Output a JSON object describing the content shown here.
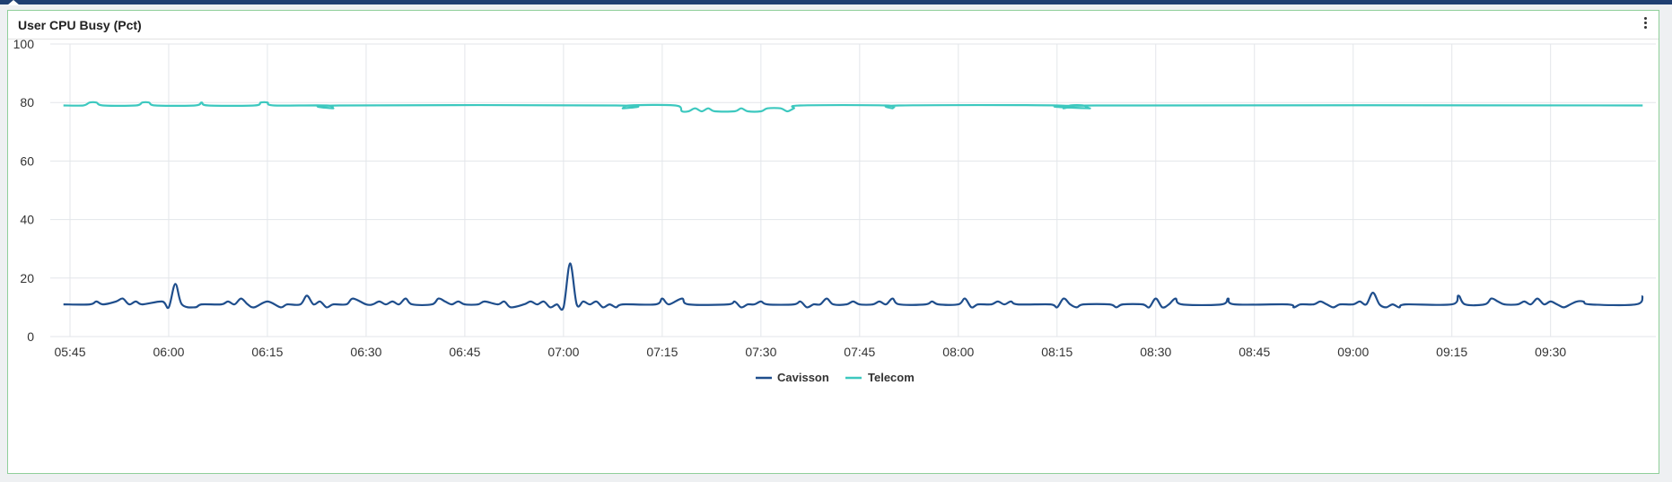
{
  "panel": {
    "title": "User CPU Busy (Pct)"
  },
  "colors": {
    "cavisson": "#1f4e8c",
    "telecom": "#3cc8bf",
    "grid": "#e3e6ea",
    "border": "#8fcf9a"
  },
  "icons": {
    "menu": "kebab-vertical-icon"
  },
  "chart_data": {
    "type": "line",
    "title": "User CPU Busy (Pct)",
    "xlabel": "",
    "ylabel": "",
    "ylim": [
      0,
      100
    ],
    "xlim": [
      "05:42",
      "09:46"
    ],
    "y_ticks": [
      0,
      20,
      40,
      60,
      80,
      100
    ],
    "x_ticks": [
      "05:45",
      "06:00",
      "06:15",
      "06:30",
      "06:45",
      "07:00",
      "07:15",
      "07:30",
      "07:45",
      "08:00",
      "08:15",
      "08:30",
      "08:45",
      "09:00",
      "09:15",
      "09:30"
    ],
    "grid": true,
    "legend": "bottom-center",
    "series": [
      {
        "name": "Cavisson",
        "points": [
          [
            "05:44",
            11
          ],
          [
            "05:48",
            11
          ],
          [
            "05:49",
            12
          ],
          [
            "05:50",
            11
          ],
          [
            "05:52",
            12
          ],
          [
            "05:53",
            13
          ],
          [
            "05:54",
            11
          ],
          [
            "05:55",
            12
          ],
          [
            "05:56",
            11
          ],
          [
            "05:59",
            12
          ],
          [
            "06:00",
            10
          ],
          [
            "06:01",
            18
          ],
          [
            "06:02",
            11
          ],
          [
            "06:04",
            10
          ],
          [
            "06:05",
            11
          ],
          [
            "06:08",
            11
          ],
          [
            "06:09",
            12
          ],
          [
            "06:10",
            11
          ],
          [
            "06:11",
            13
          ],
          [
            "06:12",
            11
          ],
          [
            "06:13",
            10
          ],
          [
            "06:15",
            12
          ],
          [
            "06:17",
            10
          ],
          [
            "06:18",
            11
          ],
          [
            "06:20",
            11
          ],
          [
            "06:21",
            14
          ],
          [
            "06:22",
            11
          ],
          [
            "06:23",
            12
          ],
          [
            "06:24",
            10
          ],
          [
            "06:25",
            11
          ],
          [
            "06:27",
            11
          ],
          [
            "06:28",
            13
          ],
          [
            "06:30",
            11
          ],
          [
            "06:31",
            11
          ],
          [
            "06:32",
            12
          ],
          [
            "06:33",
            11
          ],
          [
            "06:34",
            12
          ],
          [
            "06:35",
            11
          ],
          [
            "06:36",
            13
          ],
          [
            "06:37",
            11
          ],
          [
            "06:40",
            11
          ],
          [
            "06:41",
            13
          ],
          [
            "06:42",
            12
          ],
          [
            "06:43",
            11
          ],
          [
            "06:44",
            12
          ],
          [
            "06:45",
            11
          ],
          [
            "06:47",
            11
          ],
          [
            "06:48",
            12
          ],
          [
            "06:50",
            11
          ],
          [
            "06:51",
            12
          ],
          [
            "06:52",
            10
          ],
          [
            "06:54",
            11
          ],
          [
            "06:55",
            12
          ],
          [
            "06:56",
            11
          ],
          [
            "06:57",
            12
          ],
          [
            "06:58",
            10
          ],
          [
            "06:59",
            11
          ],
          [
            "07:00",
            10
          ],
          [
            "07:01",
            25
          ],
          [
            "07:02",
            11
          ],
          [
            "07:03",
            12
          ],
          [
            "07:04",
            11
          ],
          [
            "07:05",
            12
          ],
          [
            "07:06",
            10
          ],
          [
            "07:07",
            11
          ],
          [
            "07:08",
            10
          ],
          [
            "07:09",
            11
          ],
          [
            "07:14",
            11
          ],
          [
            "07:15",
            13
          ],
          [
            "07:16",
            11
          ],
          [
            "07:18",
            13
          ],
          [
            "07:19",
            11
          ],
          [
            "07:25",
            11
          ],
          [
            "07:26",
            12
          ],
          [
            "07:27",
            10
          ],
          [
            "07:28",
            11
          ],
          [
            "07:29",
            11
          ],
          [
            "07:30",
            12
          ],
          [
            "07:31",
            11
          ],
          [
            "07:35",
            11
          ],
          [
            "07:36",
            12
          ],
          [
            "07:37",
            10
          ],
          [
            "07:38",
            11
          ],
          [
            "07:39",
            11
          ],
          [
            "07:40",
            13
          ],
          [
            "07:41",
            11
          ],
          [
            "07:43",
            11
          ],
          [
            "07:44",
            12
          ],
          [
            "07:45",
            11
          ],
          [
            "07:47",
            11
          ],
          [
            "07:48",
            12
          ],
          [
            "07:49",
            11
          ],
          [
            "07:50",
            13
          ],
          [
            "07:51",
            11
          ],
          [
            "07:55",
            11
          ],
          [
            "07:56",
            12
          ],
          [
            "07:57",
            11
          ],
          [
            "08:00",
            11
          ],
          [
            "08:01",
            13
          ],
          [
            "08:02",
            10
          ],
          [
            "08:03",
            11
          ],
          [
            "08:05",
            11
          ],
          [
            "08:06",
            12
          ],
          [
            "08:07",
            11
          ],
          [
            "08:08",
            12
          ],
          [
            "08:09",
            11
          ],
          [
            "08:14",
            11
          ],
          [
            "08:15",
            10
          ],
          [
            "08:16",
            13
          ],
          [
            "08:17",
            11
          ],
          [
            "08:18",
            10
          ],
          [
            "08:19",
            11
          ],
          [
            "08:23",
            11
          ],
          [
            "08:24",
            10
          ],
          [
            "08:25",
            11
          ],
          [
            "08:28",
            11
          ],
          [
            "08:29",
            10
          ],
          [
            "08:30",
            13
          ],
          [
            "08:31",
            10
          ],
          [
            "08:32",
            11
          ],
          [
            "08:33",
            13
          ],
          [
            "08:34",
            11
          ],
          [
            "08:40",
            11
          ],
          [
            "08:41",
            13
          ],
          [
            "08:42",
            11
          ],
          [
            "08:50",
            11
          ],
          [
            "08:51",
            10
          ],
          [
            "08:52",
            11
          ],
          [
            "08:54",
            11
          ],
          [
            "08:55",
            12
          ],
          [
            "08:56",
            11
          ],
          [
            "08:57",
            10
          ],
          [
            "08:58",
            11
          ],
          [
            "09:00",
            11
          ],
          [
            "09:01",
            12
          ],
          [
            "09:02",
            11
          ],
          [
            "09:03",
            15
          ],
          [
            "09:04",
            11
          ],
          [
            "09:05",
            10
          ],
          [
            "09:06",
            11
          ],
          [
            "09:07",
            10
          ],
          [
            "09:08",
            11
          ],
          [
            "09:15",
            11
          ],
          [
            "09:16",
            14
          ],
          [
            "09:17",
            11
          ],
          [
            "09:20",
            11
          ],
          [
            "09:21",
            13
          ],
          [
            "09:22",
            12
          ],
          [
            "09:23",
            11
          ],
          [
            "09:25",
            11
          ],
          [
            "09:26",
            12
          ],
          [
            "09:27",
            11
          ],
          [
            "09:28",
            13
          ],
          [
            "09:29",
            11
          ],
          [
            "09:30",
            12
          ],
          [
            "09:31",
            11
          ],
          [
            "09:32",
            10
          ],
          [
            "09:33",
            11
          ],
          [
            "09:34",
            12
          ],
          [
            "09:35",
            12
          ],
          [
            "09:36",
            11
          ],
          [
            "09:43",
            11
          ],
          [
            "09:44",
            14
          ]
        ]
      },
      {
        "name": "Telecom",
        "points": [
          [
            "05:44",
            79
          ],
          [
            "05:47",
            79
          ],
          [
            "05:48",
            80
          ],
          [
            "05:49",
            80
          ],
          [
            "05:50",
            79
          ],
          [
            "05:55",
            79
          ],
          [
            "05:56",
            80
          ],
          [
            "05:57",
            80
          ],
          [
            "05:58",
            79
          ],
          [
            "06:04",
            79
          ],
          [
            "06:05",
            80
          ],
          [
            "06:06",
            79
          ],
          [
            "06:13",
            79
          ],
          [
            "06:14",
            80
          ],
          [
            "06:15",
            80
          ],
          [
            "06:16",
            79
          ],
          [
            "06:24",
            79
          ],
          [
            "06:25",
            78
          ],
          [
            "06:26",
            79
          ],
          [
            "07:08",
            79
          ],
          [
            "07:09",
            78
          ],
          [
            "07:10",
            79
          ],
          [
            "07:17",
            79
          ],
          [
            "07:18",
            77
          ],
          [
            "07:19",
            77
          ],
          [
            "07:20",
            78
          ],
          [
            "07:21",
            77
          ],
          [
            "07:22",
            78
          ],
          [
            "07:23",
            77
          ],
          [
            "07:26",
            77
          ],
          [
            "07:27",
            78
          ],
          [
            "07:28",
            77
          ],
          [
            "07:30",
            77
          ],
          [
            "07:31",
            78
          ],
          [
            "07:33",
            78
          ],
          [
            "07:34",
            77
          ],
          [
            "07:35",
            78
          ],
          [
            "07:36",
            79
          ],
          [
            "07:49",
            79
          ],
          [
            "07:50",
            78
          ],
          [
            "07:51",
            79
          ],
          [
            "08:15",
            79
          ],
          [
            "08:16",
            78
          ],
          [
            "08:17",
            79
          ],
          [
            "08:19",
            79
          ],
          [
            "08:20",
            78
          ],
          [
            "08:21",
            79
          ],
          [
            "09:44",
            79
          ]
        ]
      }
    ]
  }
}
